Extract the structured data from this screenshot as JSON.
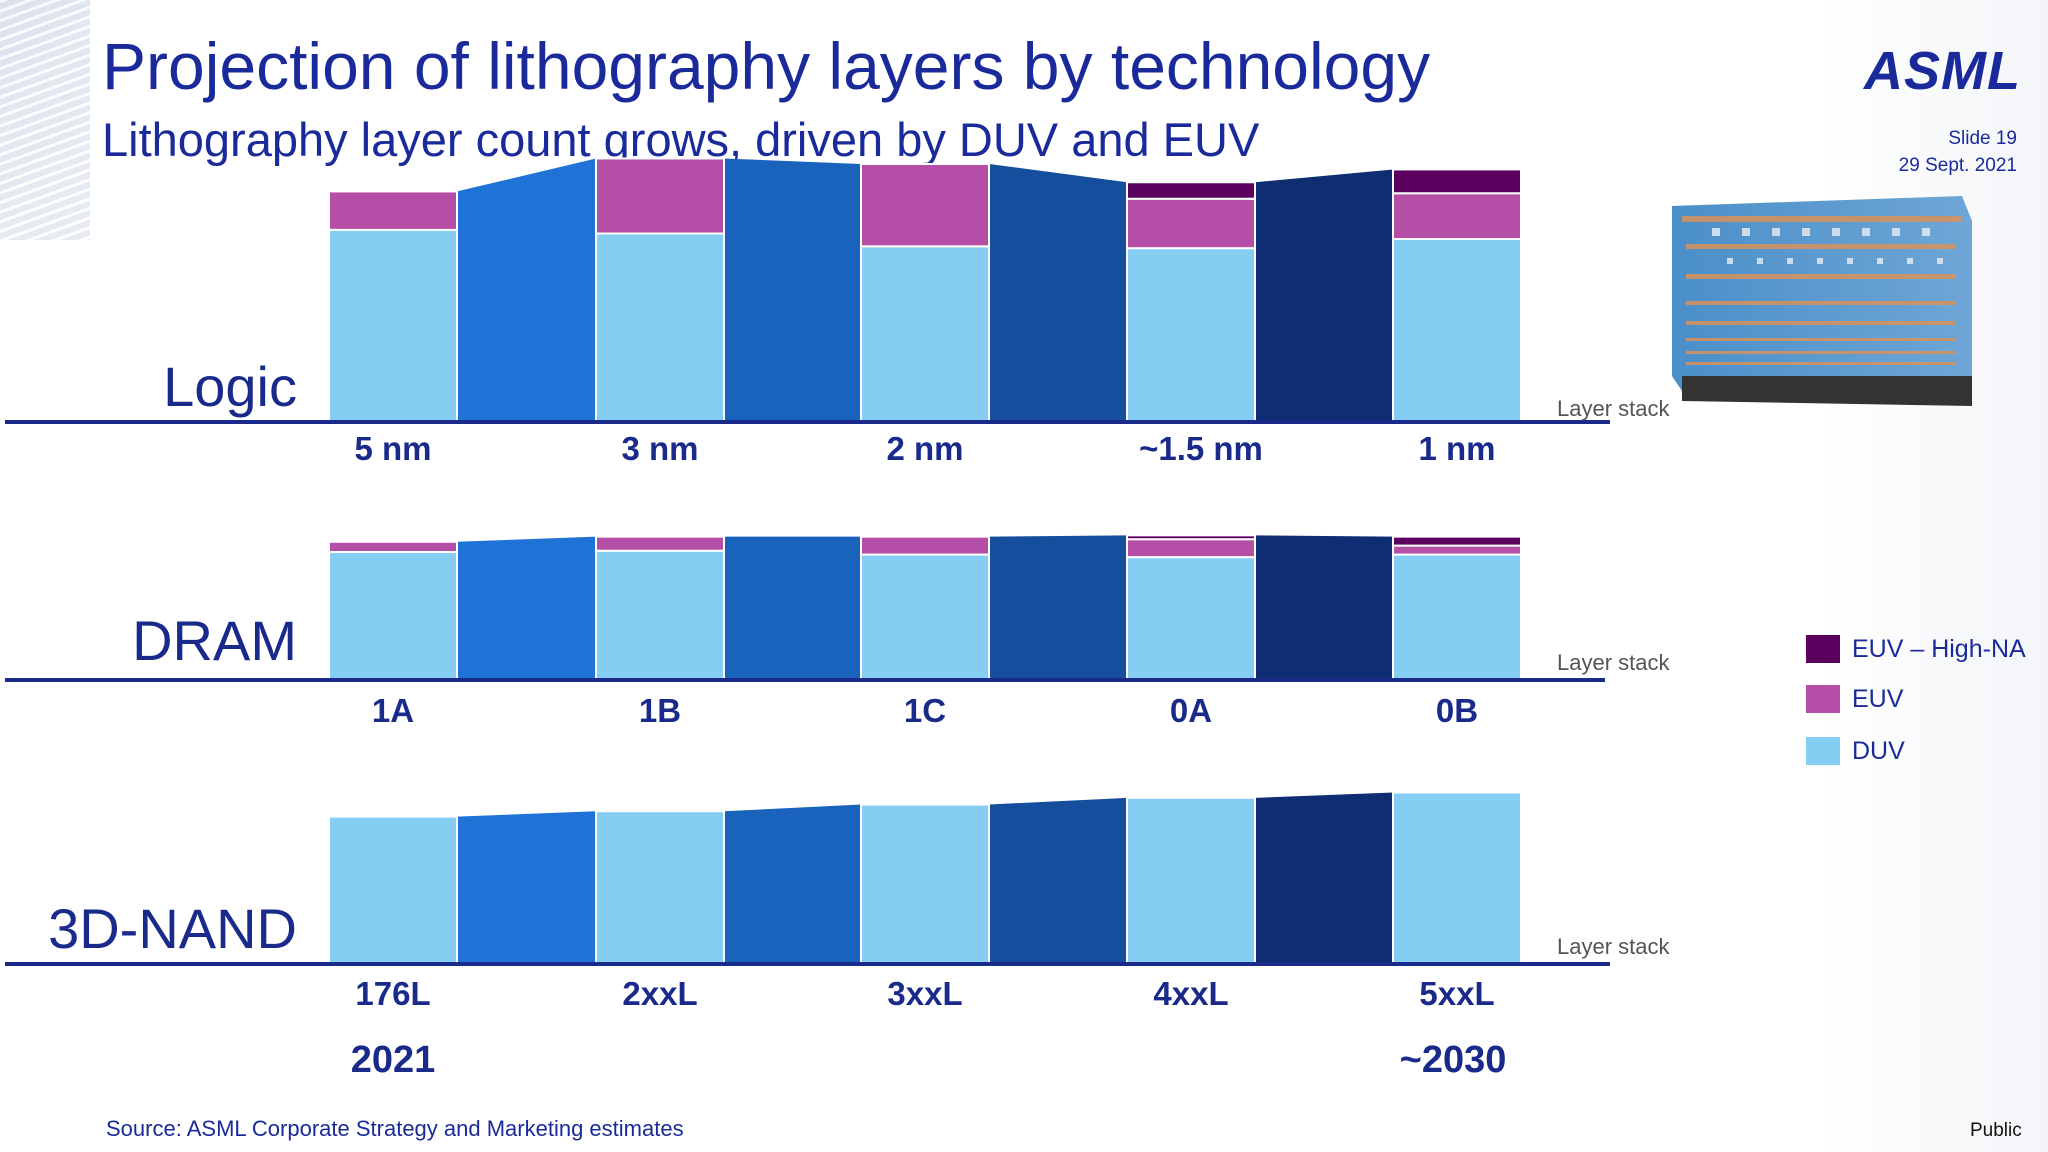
{
  "slide": {
    "title": "Projection of lithography layers by technology",
    "subtitle": "Lithography layer count grows, driven by DUV and EUV",
    "logo": "ASML",
    "slide_number": "Slide 19",
    "date": "29 Sept. 2021",
    "source": "Source: ASML Corporate Strategy and Marketing estimates",
    "classification": "Public"
  },
  "legend": [
    {
      "label": "EUV – High-NA",
      "color": "#5c0060"
    },
    {
      "label": "EUV",
      "color": "#b44ea6"
    },
    {
      "label": "DUV",
      "color": "#85cdf2"
    }
  ],
  "colors": {
    "duv": "#85cdf2",
    "euv": "#b44ea6",
    "euv_highna": "#5c0060",
    "axis": "#1a2a8a",
    "connectors": [
      "#2073d6",
      "#1a63bd",
      "#164e9e",
      "#0e2d72"
    ]
  },
  "chart_data": [
    {
      "type": "bar",
      "stacked": true,
      "title": "Logic",
      "axis_note": "Layer stack",
      "categories": [
        "5 nm",
        "3 nm",
        "2 nm",
        "~1.5 nm",
        "1 nm"
      ],
      "series": [
        {
          "name": "DUV",
          "values": [
            105,
            103,
            96,
            95,
            100
          ]
        },
        {
          "name": "EUV",
          "values": [
            21,
            41,
            45,
            27,
            25
          ]
        },
        {
          "name": "EUV – High-NA",
          "values": [
            0,
            0,
            0,
            9,
            13
          ]
        }
      ],
      "ylim": [
        0,
        145
      ],
      "grid": false
    },
    {
      "type": "bar",
      "stacked": true,
      "title": "DRAM",
      "axis_note": "Layer stack",
      "categories": [
        "1A",
        "1B",
        "1C",
        "0A",
        "0B"
      ],
      "series": [
        {
          "name": "DUV",
          "values": [
            100,
            101,
            98,
            96,
            98
          ]
        },
        {
          "name": "EUV",
          "values": [
            8,
            11,
            14,
            14,
            7
          ]
        },
        {
          "name": "EUV – High-NA",
          "values": [
            0,
            0,
            0,
            3,
            7
          ]
        }
      ],
      "ylim": [
        0,
        118
      ],
      "grid": false
    },
    {
      "type": "bar",
      "stacked": true,
      "title": "3D-NAND",
      "axis_note": "Layer stack",
      "categories": [
        "176L",
        "2xxL",
        "3xxL",
        "4xxL",
        "5xxL"
      ],
      "series": [
        {
          "name": "DUV",
          "values": [
            110,
            114,
            119,
            124,
            128
          ]
        },
        {
          "name": "EUV",
          "values": [
            0,
            0,
            0,
            0,
            0
          ]
        },
        {
          "name": "EUV – High-NA",
          "values": [
            0,
            0,
            0,
            0,
            0
          ]
        }
      ],
      "ylim": [
        0,
        130
      ],
      "grid": false
    }
  ],
  "timeline": {
    "start": "2021",
    "end": "~2030"
  }
}
